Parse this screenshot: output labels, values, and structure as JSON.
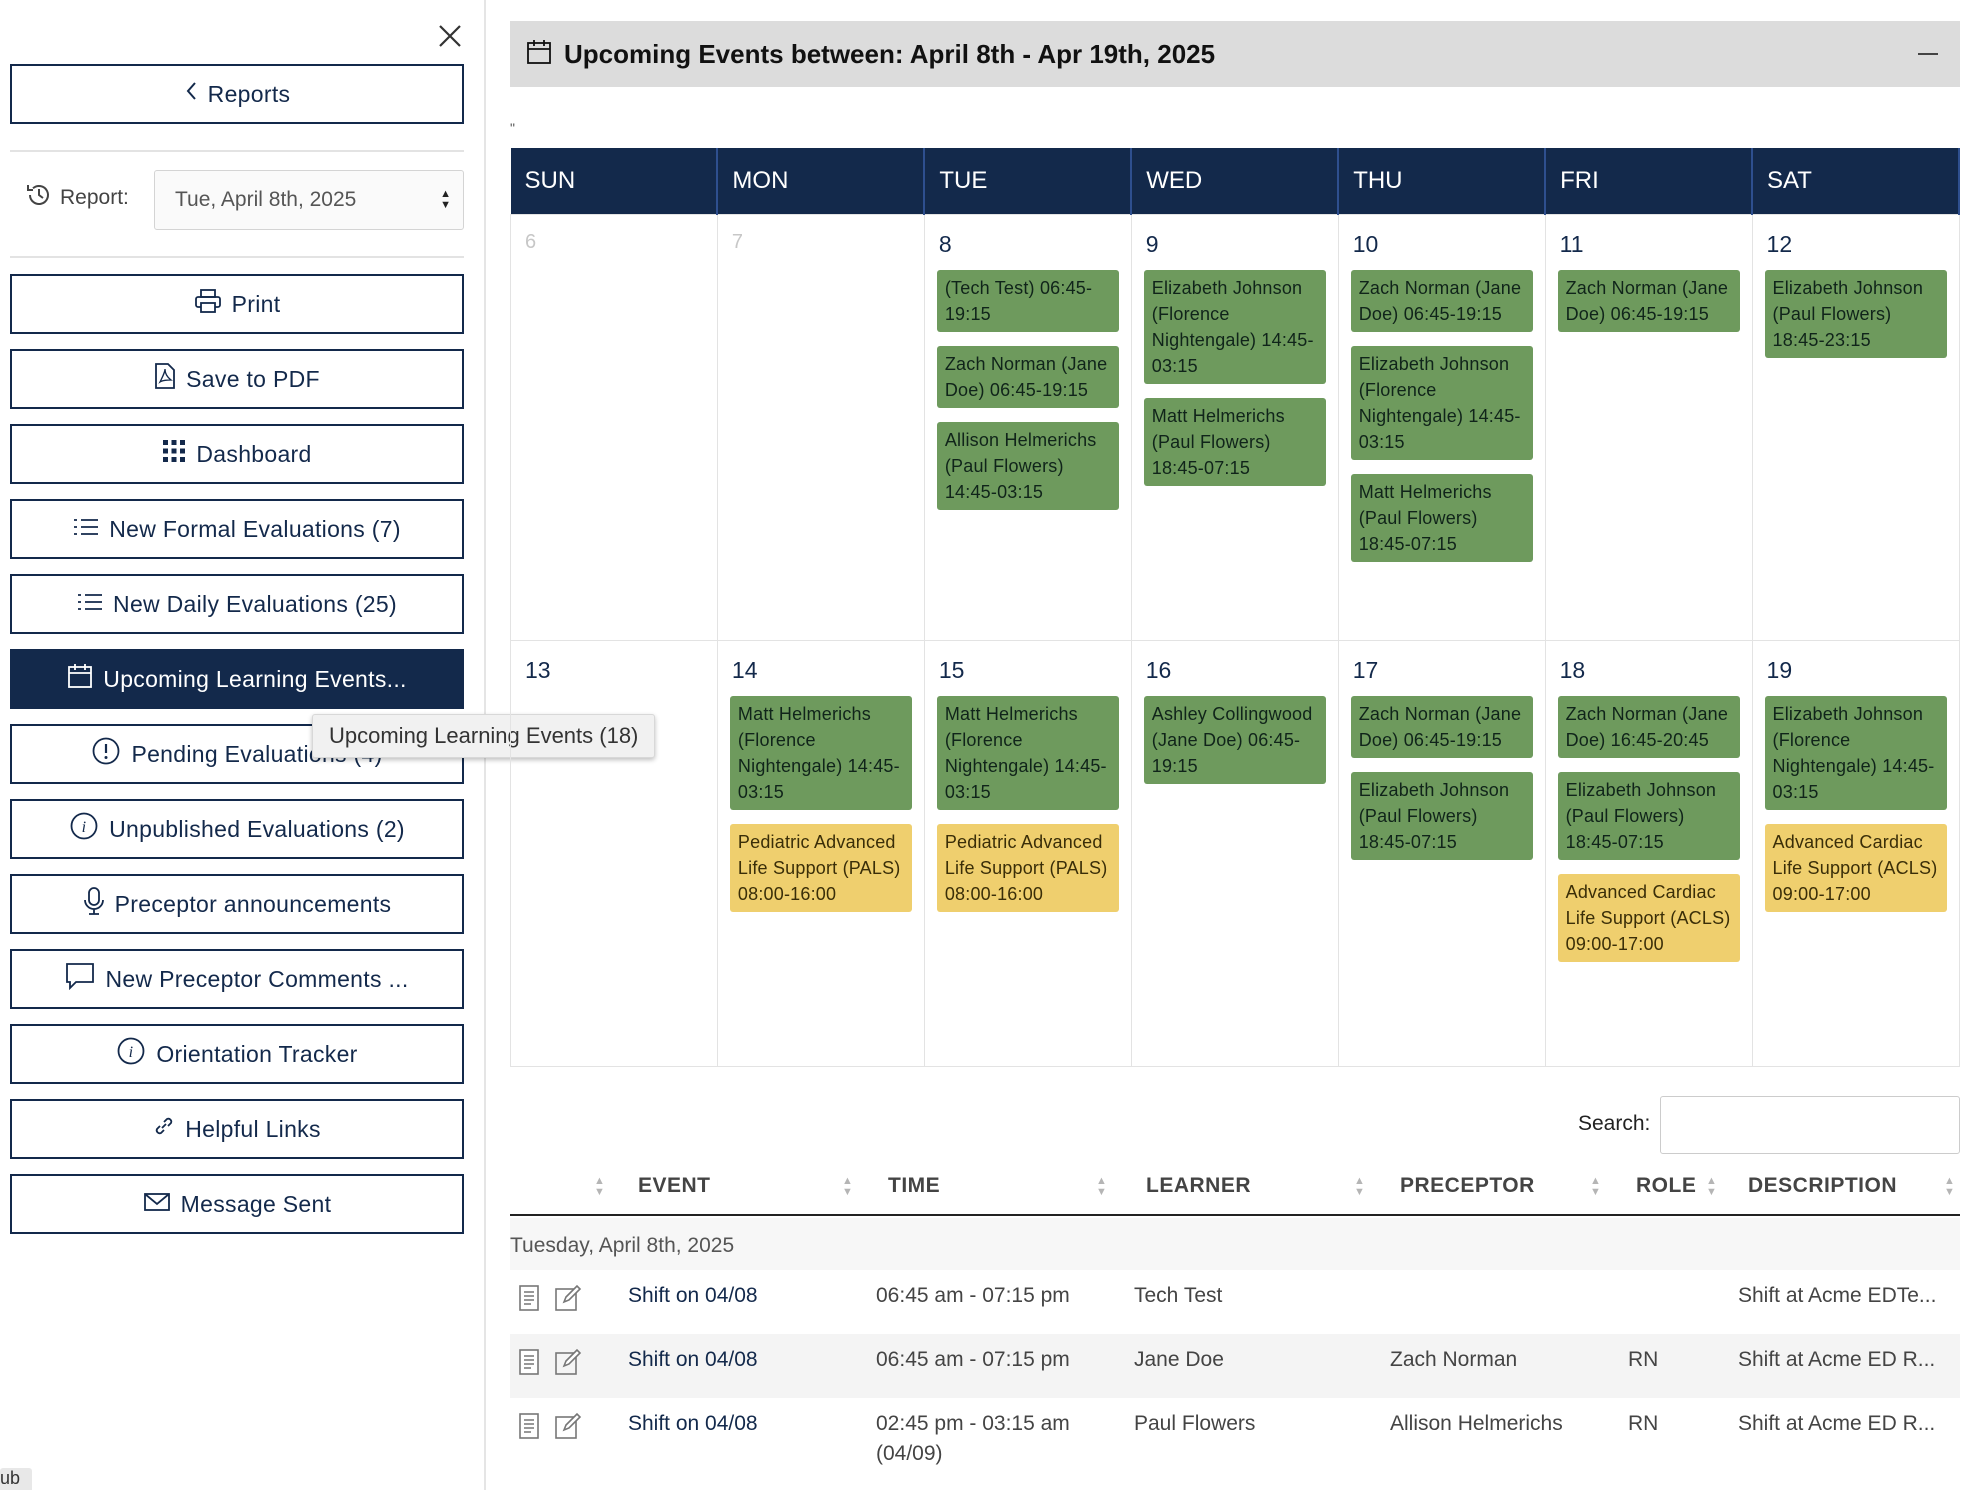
{
  "sidebar": {
    "reports_label": "Reports",
    "report_label": "Report:",
    "report_date": "Tue, April 8th, 2025",
    "buttons": [
      {
        "label": "Print",
        "icon": "printer-icon"
      },
      {
        "label": "Save to PDF",
        "icon": "pdf-icon"
      },
      {
        "label": "Dashboard",
        "icon": "grid-icon"
      },
      {
        "label": "New Formal Evaluations (7)",
        "icon": "list-icon"
      },
      {
        "label": "New Daily Evaluations (25)",
        "icon": "list-icon"
      },
      {
        "label": "Upcoming Learning Events...",
        "icon": "calendar-icon",
        "active": true
      },
      {
        "label": "Pending Evaluations (4)",
        "icon": "alert-icon"
      },
      {
        "label": "Unpublished Evaluations (2)",
        "icon": "info-icon"
      },
      {
        "label": "Preceptor announcements",
        "icon": "microphone-icon"
      },
      {
        "label": "New Preceptor Comments ...",
        "icon": "comment-icon"
      },
      {
        "label": "Orientation Tracker",
        "icon": "info-icon"
      },
      {
        "label": "Helpful Links",
        "icon": "link-icon"
      },
      {
        "label": "Message Sent",
        "icon": "envelope-icon"
      }
    ],
    "tooltip": "Upcoming Learning Events (18)",
    "sub_tab": "ub"
  },
  "panel": {
    "title": "Upcoming Events between: April 8th - Apr 19th, 2025",
    "stray_mark": "\""
  },
  "calendar": {
    "days": [
      "SUN",
      "MON",
      "TUE",
      "WED",
      "THU",
      "FRI",
      "SAT"
    ],
    "weeks": [
      [
        {
          "num": "6",
          "muted": true,
          "events": []
        },
        {
          "num": "7",
          "muted": true,
          "events": []
        },
        {
          "num": "8",
          "events": [
            {
              "text": "(Tech Test) 06:45-19:15",
              "type": "green"
            },
            {
              "text": "Zach Norman (Jane Doe) 06:45-19:15",
              "type": "green"
            },
            {
              "text": "Allison Helmerichs (Paul Flowers) 14:45-03:15",
              "type": "green"
            }
          ]
        },
        {
          "num": "9",
          "events": [
            {
              "text": "Elizabeth Johnson (Florence Nightengale) 14:45-03:15",
              "type": "green"
            },
            {
              "text": "Matt Helmerichs (Paul Flowers) 18:45-07:15",
              "type": "green"
            }
          ]
        },
        {
          "num": "10",
          "events": [
            {
              "text": "Zach Norman (Jane Doe) 06:45-19:15",
              "type": "green"
            },
            {
              "text": "Elizabeth Johnson (Florence Nightengale) 14:45-03:15",
              "type": "green"
            },
            {
              "text": "Matt Helmerichs (Paul Flowers) 18:45-07:15",
              "type": "green"
            }
          ]
        },
        {
          "num": "11",
          "events": [
            {
              "text": "Zach Norman (Jane Doe) 06:45-19:15",
              "type": "green"
            }
          ]
        },
        {
          "num": "12",
          "events": [
            {
              "text": "Elizabeth Johnson (Paul Flowers) 18:45-23:15",
              "type": "green"
            }
          ]
        }
      ],
      [
        {
          "num": "13",
          "events": []
        },
        {
          "num": "14",
          "events": [
            {
              "text": "Matt Helmerichs (Florence Nightengale) 14:45-03:15",
              "type": "green"
            },
            {
              "text": "Pediatric Advanced Life Support (PALS) 08:00-16:00",
              "type": "yellow"
            }
          ]
        },
        {
          "num": "15",
          "events": [
            {
              "text": "Matt Helmerichs (Florence Nightengale) 14:45-03:15",
              "type": "green"
            },
            {
              "text": "Pediatric Advanced Life Support (PALS) 08:00-16:00",
              "type": "yellow"
            }
          ]
        },
        {
          "num": "16",
          "events": [
            {
              "text": "Ashley Collingwood (Jane Doe) 06:45-19:15",
              "type": "green"
            }
          ]
        },
        {
          "num": "17",
          "events": [
            {
              "text": "Zach Norman (Jane Doe) 06:45-19:15",
              "type": "green"
            },
            {
              "text": "Elizabeth Johnson (Paul Flowers) 18:45-07:15",
              "type": "green"
            }
          ]
        },
        {
          "num": "18",
          "events": [
            {
              "text": "Zach Norman (Jane Doe) 16:45-20:45",
              "type": "green"
            },
            {
              "text": "Elizabeth Johnson (Paul Flowers) 18:45-07:15",
              "type": "green"
            },
            {
              "text": "Advanced Cardiac Life Support (ACLS) 09:00-17:00",
              "type": "yellow"
            }
          ]
        },
        {
          "num": "19",
          "events": [
            {
              "text": "Elizabeth Johnson (Florence Nightengale) 14:45-03:15",
              "type": "green"
            },
            {
              "text": "Advanced Cardiac Life Support (ACLS) 09:00-17:00",
              "type": "yellow"
            }
          ]
        }
      ]
    ]
  },
  "list": {
    "search_label": "Search:",
    "columns": [
      "EVENT",
      "TIME",
      "LEARNER",
      "PRECEPTOR",
      "ROLE",
      "DESCRIPTION"
    ],
    "group_label": "Tuesday, April 8th, 2025",
    "rows": [
      {
        "event": "Shift on 04/08",
        "time": "06:45 am - 07:15 pm",
        "time2": "",
        "learner": "Tech Test",
        "preceptor": "",
        "role": "",
        "description": "Shift at Acme EDTe..."
      },
      {
        "event": "Shift on 04/08",
        "time": "06:45 am - 07:15 pm",
        "time2": "",
        "learner": "Jane Doe",
        "preceptor": "Zach Norman",
        "role": "RN",
        "description": "Shift at Acme ED R..."
      },
      {
        "event": "Shift on 04/08",
        "time": "02:45 pm - 03:15 am",
        "time2": "(04/09)",
        "learner": "Paul Flowers",
        "preceptor": "Allison Helmerichs",
        "role": "RN",
        "description": "Shift at Acme ED R..."
      }
    ]
  },
  "colors": {
    "navy": "#13294b",
    "green_event": "#6e9a5d",
    "yellow_event": "#efcf6e",
    "header_bg": "#dcdcdc"
  }
}
